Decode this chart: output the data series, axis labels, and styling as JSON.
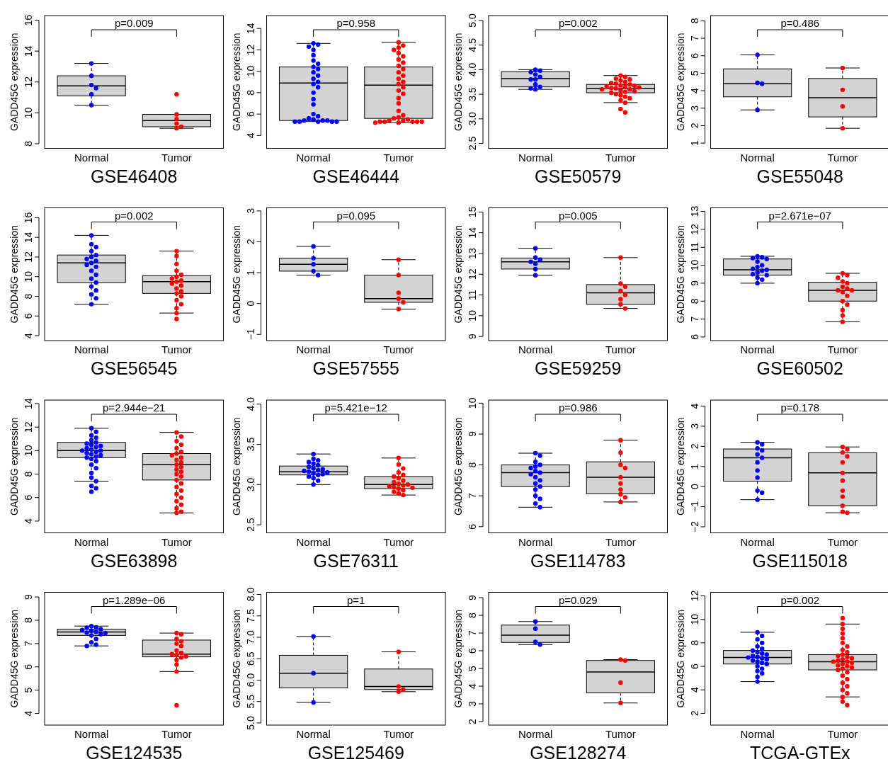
{
  "chart_data": [
    {
      "type": "box",
      "xlabel": "GSE46408",
      "ylabel": "GADD45G expression",
      "annotations": [
        "p=0.009"
      ],
      "categories": [
        "Normal",
        "Tumor"
      ],
      "ylim": [
        7.7,
        16.3
      ],
      "yticks": [
        8,
        10,
        12,
        14,
        16
      ],
      "marker": "circle",
      "boxes": [
        {
          "low": 10.5,
          "q1": 11.1,
          "median": 11.75,
          "q3": 12.4,
          "high": 13.2
        },
        {
          "low": 9.0,
          "q1": 9.1,
          "median": 9.5,
          "q3": 9.9,
          "high": 9.9
        }
      ],
      "series": [
        {
          "type": "scatter",
          "color": "#0000ff",
          "x": [
            "Normal",
            "Normal",
            "Normal",
            "Normal",
            "Normal",
            "Normal"
          ],
          "values": [
            13.2,
            12.4,
            11.8,
            11.6,
            11.2,
            10.5
          ]
        },
        {
          "type": "scatter",
          "color": "#ff0000",
          "x": [
            "Tumor",
            "Tumor",
            "Tumor",
            "Tumor",
            "Tumor",
            "Tumor"
          ],
          "values": [
            11.2,
            9.9,
            9.6,
            9.3,
            9.1,
            9.0
          ]
        }
      ]
    },
    {
      "type": "box",
      "xlabel": "GSE46444",
      "ylabel": "GADD45G expression",
      "annotations": [
        "p=0.958"
      ],
      "categories": [
        "Normal",
        "Tumor"
      ],
      "ylim": [
        2.8,
        15.2
      ],
      "yticks": [
        4,
        6,
        8,
        10,
        12,
        14
      ],
      "marker": "circle",
      "boxes": [
        {
          "low": 5.3,
          "q1": 5.4,
          "median": 8.9,
          "q3": 10.4,
          "high": 12.6
        },
        {
          "low": 5.2,
          "q1": 5.6,
          "median": 8.7,
          "q3": 10.4,
          "high": 12.7
        }
      ],
      "series": [
        {
          "type": "scatter",
          "color": "#0000ff",
          "x": [
            "Normal",
            "Normal",
            "Normal",
            "Normal",
            "Normal",
            "Normal",
            "Normal",
            "Normal",
            "Normal",
            "Normal",
            "Normal",
            "Normal",
            "Normal",
            "Normal",
            "Normal",
            "Normal",
            "Normal",
            "Normal",
            "Normal",
            "Normal",
            "Normal",
            "Normal",
            "Normal",
            "Normal",
            "Normal",
            "Normal",
            "Normal",
            "Normal",
            "Normal",
            "Normal"
          ],
          "values": [
            12.6,
            12.5,
            12.3,
            12.0,
            11.5,
            11.0,
            10.7,
            10.4,
            10.2,
            9.9,
            9.6,
            9.3,
            9.0,
            8.8,
            8.5,
            8.0,
            7.4,
            6.9,
            6.0,
            5.8,
            5.6,
            5.5,
            5.4,
            5.4,
            5.4,
            5.3,
            5.3,
            5.3,
            5.3,
            5.3
          ]
        },
        {
          "type": "scatter",
          "color": "#ff0000",
          "x": [
            "Tumor",
            "Tumor",
            "Tumor",
            "Tumor",
            "Tumor",
            "Tumor",
            "Tumor",
            "Tumor",
            "Tumor",
            "Tumor",
            "Tumor",
            "Tumor",
            "Tumor",
            "Tumor",
            "Tumor",
            "Tumor",
            "Tumor",
            "Tumor",
            "Tumor",
            "Tumor",
            "Tumor",
            "Tumor",
            "Tumor",
            "Tumor",
            "Tumor",
            "Tumor",
            "Tumor",
            "Tumor",
            "Tumor",
            "Tumor",
            "Tumor",
            "Tumor",
            "Tumor",
            "Tumor"
          ],
          "values": [
            12.7,
            12.4,
            12.2,
            12.0,
            11.7,
            11.4,
            11.1,
            10.8,
            10.5,
            10.2,
            9.9,
            9.6,
            9.3,
            9.0,
            8.8,
            8.5,
            8.2,
            7.9,
            7.5,
            7.0,
            6.3,
            5.9,
            5.7,
            5.6,
            5.5,
            5.4,
            5.4,
            5.3,
            5.3,
            5.3,
            5.3,
            5.3,
            5.2,
            5.2
          ]
        }
      ]
    },
    {
      "type": "box",
      "xlabel": "GSE50579",
      "ylabel": "GADD45G expression",
      "annotations": [
        "p=0.002"
      ],
      "categories": [
        "Normal",
        "Tumor"
      ],
      "ylim": [
        2.4,
        5.1
      ],
      "yticks": [
        {
          "value": 2.5,
          "label": "2.5"
        },
        {
          "value": 3,
          "label": "3.0"
        },
        {
          "value": 3.5,
          "label": "3.5"
        },
        {
          "value": 4,
          "label": "4.0"
        },
        {
          "value": 4.5,
          "label": "4.5"
        },
        {
          "value": 5,
          "label": "5.0"
        }
      ],
      "marker": "circle",
      "boxes": [
        {
          "low": 3.6,
          "q1": 3.65,
          "median": 3.82,
          "q3": 3.96,
          "high": 4.0
        },
        {
          "low": 3.33,
          "q1": 3.53,
          "median": 3.62,
          "q3": 3.7,
          "high": 3.88
        }
      ],
      "series": [
        {
          "type": "scatter",
          "color": "#0000ff",
          "x": [
            "Normal",
            "Normal",
            "Normal",
            "Normal",
            "Normal",
            "Normal",
            "Normal",
            "Normal",
            "Normal",
            "Normal",
            "Normal"
          ],
          "values": [
            4.0,
            3.98,
            3.95,
            3.9,
            3.85,
            3.8,
            3.8,
            3.7,
            3.65,
            3.62,
            3.6
          ]
        },
        {
          "type": "scatter",
          "color": "#ff0000",
          "x": [
            "Tumor",
            "Tumor",
            "Tumor",
            "Tumor",
            "Tumor",
            "Tumor",
            "Tumor",
            "Tumor",
            "Tumor",
            "Tumor",
            "Tumor",
            "Tumor",
            "Tumor",
            "Tumor",
            "Tumor",
            "Tumor",
            "Tumor",
            "Tumor",
            "Tumor",
            "Tumor",
            "Tumor",
            "Tumor",
            "Tumor",
            "Tumor",
            "Tumor",
            "Tumor",
            "Tumor",
            "Tumor",
            "Tumor",
            "Tumor"
          ],
          "values": [
            3.88,
            3.85,
            3.82,
            3.8,
            3.78,
            3.75,
            3.73,
            3.72,
            3.7,
            3.68,
            3.67,
            3.66,
            3.65,
            3.64,
            3.63,
            3.62,
            3.6,
            3.6,
            3.58,
            3.56,
            3.55,
            3.53,
            3.5,
            3.48,
            3.45,
            3.42,
            3.38,
            3.33,
            3.2,
            3.13
          ]
        }
      ]
    },
    {
      "type": "box",
      "xlabel": "GSE55048",
      "ylabel": "GADD45G expression",
      "annotations": [
        "p=0.486"
      ],
      "categories": [
        "Normal",
        "Tumor"
      ],
      "ylim": [
        0.7,
        8.3
      ],
      "yticks": [
        1,
        2,
        3,
        4,
        5,
        6,
        7,
        8
      ],
      "marker": "circle",
      "boxes": [
        {
          "low": 2.9,
          "q1": 3.65,
          "median": 4.4,
          "q3": 5.25,
          "high": 6.05
        },
        {
          "low": 1.85,
          "q1": 2.5,
          "median": 3.6,
          "q3": 4.7,
          "high": 5.3
        }
      ],
      "series": [
        {
          "type": "scatter",
          "color": "#0000ff",
          "x": [
            "Normal",
            "Normal",
            "Normal",
            "Normal"
          ],
          "values": [
            6.05,
            4.45,
            4.4,
            2.9
          ]
        },
        {
          "type": "scatter",
          "color": "#ff0000",
          "x": [
            "Tumor",
            "Tumor",
            "Tumor",
            "Tumor"
          ],
          "values": [
            5.3,
            4.05,
            3.1,
            1.85
          ]
        }
      ]
    },
    {
      "type": "box",
      "xlabel": "GSE56545",
      "ylabel": "GADD45G expression",
      "annotations": [
        "p=0.002"
      ],
      "categories": [
        "Normal",
        "Tumor"
      ],
      "ylim": [
        3.5,
        17
      ],
      "yticks": [
        4,
        6,
        8,
        10,
        12,
        14,
        16
      ],
      "marker": "circle",
      "boxes": [
        {
          "low": 7.2,
          "q1": 9.4,
          "median": 11.4,
          "q3": 12.2,
          "high": 14.2
        },
        {
          "low": 6.3,
          "q1": 8.3,
          "median": 9.5,
          "q3": 10.1,
          "high": 12.6
        }
      ],
      "series": [
        {
          "type": "scatter",
          "color": "#0000ff",
          "x": [
            "Normal",
            "Normal",
            "Normal",
            "Normal",
            "Normal",
            "Normal",
            "Normal",
            "Normal",
            "Normal",
            "Normal",
            "Normal",
            "Normal",
            "Normal",
            "Normal",
            "Normal",
            "Normal",
            "Normal",
            "Normal",
            "Normal",
            "Normal"
          ],
          "values": [
            14.2,
            13.3,
            13.0,
            12.6,
            12.2,
            12.0,
            11.8,
            11.6,
            11.4,
            11.2,
            11.0,
            10.6,
            10.2,
            9.8,
            9.4,
            9.0,
            8.6,
            8.2,
            7.8,
            7.2
          ]
        },
        {
          "type": "scatter",
          "color": "#ff0000",
          "x": [
            "Tumor",
            "Tumor",
            "Tumor",
            "Tumor",
            "Tumor",
            "Tumor",
            "Tumor",
            "Tumor",
            "Tumor",
            "Tumor",
            "Tumor",
            "Tumor",
            "Tumor",
            "Tumor",
            "Tumor",
            "Tumor",
            "Tumor",
            "Tumor",
            "Tumor",
            "Tumor"
          ],
          "values": [
            12.6,
            12.1,
            11.3,
            10.6,
            10.2,
            10.0,
            9.8,
            9.6,
            9.5,
            9.3,
            9.1,
            8.8,
            8.5,
            8.3,
            8.0,
            7.6,
            7.2,
            6.8,
            6.3,
            5.7
          ]
        }
      ]
    },
    {
      "type": "box",
      "xlabel": "GSE57555",
      "ylabel": "GADD45G expression",
      "annotations": [
        "p=0.095"
      ],
      "categories": [
        "Normal",
        "Tumor"
      ],
      "ylim": [
        -1.2,
        3.1
      ],
      "yticks": [
        {
          "value": -1,
          "label": "−1"
        },
        0,
        1,
        2,
        3
      ],
      "marker": "circle",
      "boxes": [
        {
          "low": 0.92,
          "q1": 1.05,
          "median": 1.27,
          "q3": 1.47,
          "high": 1.85
        },
        {
          "low": -0.18,
          "q1": 0.04,
          "median": 0.16,
          "q3": 0.92,
          "high": 1.42
        }
      ],
      "series": [
        {
          "type": "scatter",
          "color": "#0000ff",
          "x": [
            "Normal",
            "Normal",
            "Normal",
            "Normal",
            "Normal"
          ],
          "values": [
            1.85,
            1.47,
            1.27,
            1.05,
            0.92
          ]
        },
        {
          "type": "scatter",
          "color": "#ff0000",
          "x": [
            "Tumor",
            "Tumor",
            "Tumor",
            "Tumor",
            "Tumor",
            "Tumor"
          ],
          "values": [
            1.42,
            0.92,
            0.35,
            0.16,
            0.04,
            -0.18
          ]
        }
      ]
    },
    {
      "type": "box",
      "xlabel": "GSE59259",
      "ylabel": "GADD45G expression",
      "annotations": [
        "p=0.005"
      ],
      "categories": [
        "Normal",
        "Tumor"
      ],
      "ylim": [
        8.8,
        15.2
      ],
      "yticks": [
        9,
        10,
        11,
        12,
        13,
        14,
        15
      ],
      "marker": "circle",
      "boxes": [
        {
          "low": 11.95,
          "q1": 12.25,
          "median": 12.6,
          "q3": 12.78,
          "high": 13.25
        },
        {
          "low": 10.35,
          "q1": 10.55,
          "median": 11.1,
          "q3": 11.5,
          "high": 12.8
        }
      ],
      "series": [
        {
          "type": "scatter",
          "color": "#0000ff",
          "x": [
            "Normal",
            "Normal",
            "Normal",
            "Normal",
            "Normal",
            "Normal",
            "Normal"
          ],
          "values": [
            13.25,
            12.8,
            12.7,
            12.6,
            12.5,
            12.25,
            11.95
          ]
        },
        {
          "type": "scatter",
          "color": "#ff0000",
          "x": [
            "Tumor",
            "Tumor",
            "Tumor",
            "Tumor",
            "Tumor",
            "Tumor",
            "Tumor",
            "Tumor"
          ],
          "values": [
            12.8,
            11.55,
            11.4,
            11.2,
            11.0,
            10.8,
            10.55,
            10.35
          ]
        }
      ]
    },
    {
      "type": "box",
      "xlabel": "GSE60502",
      "ylabel": "GADD45G expression",
      "annotations": [
        "p=2.671e−07"
      ],
      "categories": [
        "Normal",
        "Tumor"
      ],
      "ylim": [
        5.8,
        13.2
      ],
      "yticks": [
        6,
        7,
        8,
        9,
        10,
        11,
        12,
        13
      ],
      "marker": "circle",
      "boxes": [
        {
          "low": 9.0,
          "q1": 9.45,
          "median": 9.75,
          "q3": 10.35,
          "high": 10.5
        },
        {
          "low": 6.85,
          "q1": 8.0,
          "median": 8.6,
          "q3": 9.05,
          "high": 9.55
        }
      ],
      "series": [
        {
          "type": "scatter",
          "color": "#0000ff",
          "x": [
            "Normal",
            "Normal",
            "Normal",
            "Normal",
            "Normal",
            "Normal",
            "Normal",
            "Normal",
            "Normal",
            "Normal",
            "Normal",
            "Normal",
            "Normal",
            "Normal",
            "Normal",
            "Normal"
          ],
          "values": [
            10.5,
            10.45,
            10.4,
            10.35,
            10.2,
            10.0,
            9.9,
            9.8,
            9.75,
            9.7,
            9.6,
            9.5,
            9.45,
            9.3,
            9.2,
            9.0
          ]
        },
        {
          "type": "scatter",
          "color": "#ff0000",
          "x": [
            "Tumor",
            "Tumor",
            "Tumor",
            "Tumor",
            "Tumor",
            "Tumor",
            "Tumor",
            "Tumor",
            "Tumor",
            "Tumor",
            "Tumor",
            "Tumor",
            "Tumor",
            "Tumor",
            "Tumor",
            "Tumor"
          ],
          "values": [
            9.55,
            9.45,
            9.3,
            9.1,
            9.0,
            8.8,
            8.7,
            8.6,
            8.6,
            8.5,
            8.3,
            8.0,
            7.8,
            7.5,
            7.2,
            6.85
          ]
        }
      ]
    },
    {
      "type": "box",
      "xlabel": "GSE63898",
      "ylabel": "GADD45G expression",
      "annotations": [
        "p=2.944e−21"
      ],
      "categories": [
        "Normal",
        "Tumor"
      ],
      "ylim": [
        3,
        14.3
      ],
      "yticks": [
        4,
        6,
        8,
        10,
        12,
        14
      ],
      "marker": "circle",
      "boxes": [
        {
          "low": 7.4,
          "q1": 9.4,
          "median": 10.0,
          "q3": 10.7,
          "high": 11.9
        },
        {
          "low": 4.7,
          "q1": 7.5,
          "median": 8.8,
          "q3": 9.75,
          "high": 11.55
        }
      ],
      "series": [
        {
          "type": "scatter",
          "color": "#0000ff",
          "x": [
            "Normal",
            "Normal",
            "Normal",
            "Normal",
            "Normal",
            "Normal",
            "Normal",
            "Normal",
            "Normal",
            "Normal",
            "Normal",
            "Normal",
            "Normal",
            "Normal",
            "Normal",
            "Normal",
            "Normal",
            "Normal",
            "Normal",
            "Normal",
            "Normal",
            "Normal",
            "Normal",
            "Normal",
            "Normal",
            "Normal",
            "Normal",
            "Normal",
            "Normal",
            "Normal"
          ],
          "values": [
            11.9,
            11.6,
            11.3,
            11.1,
            10.9,
            10.7,
            10.6,
            10.5,
            10.4,
            10.3,
            10.2,
            10.1,
            10.0,
            10.0,
            9.9,
            9.8,
            9.7,
            9.6,
            9.5,
            9.4,
            9.3,
            9.1,
            8.8,
            8.5,
            8.1,
            7.7,
            7.4,
            7.0,
            6.8,
            6.5
          ]
        },
        {
          "type": "scatter",
          "color": "#ff0000",
          "x": [
            "Tumor",
            "Tumor",
            "Tumor",
            "Tumor",
            "Tumor",
            "Tumor",
            "Tumor",
            "Tumor",
            "Tumor",
            "Tumor",
            "Tumor",
            "Tumor",
            "Tumor",
            "Tumor",
            "Tumor",
            "Tumor",
            "Tumor",
            "Tumor",
            "Tumor",
            "Tumor",
            "Tumor",
            "Tumor",
            "Tumor",
            "Tumor",
            "Tumor",
            "Tumor",
            "Tumor",
            "Tumor"
          ],
          "values": [
            11.55,
            11.2,
            10.8,
            10.5,
            10.2,
            9.9,
            9.75,
            9.6,
            9.4,
            9.2,
            9.0,
            8.8,
            8.6,
            8.4,
            8.2,
            8.0,
            7.8,
            7.5,
            7.2,
            6.9,
            6.6,
            6.3,
            6.0,
            5.7,
            5.4,
            5.1,
            4.8,
            4.7
          ]
        }
      ]
    },
    {
      "type": "box",
      "xlabel": "GSE76311",
      "ylabel": "GADD45G expression",
      "annotations": [
        "p=5.421e−12"
      ],
      "categories": [
        "Normal",
        "Tumor"
      ],
      "ylim": [
        2.4,
        4.05
      ],
      "yticks": [
        {
          "value": 2.5,
          "label": "2.5"
        },
        {
          "value": 3,
          "label": "3.0"
        },
        {
          "value": 3.5,
          "label": "3.5"
        },
        {
          "value": 4,
          "label": "4.0"
        }
      ],
      "marker": "circle",
      "boxes": [
        {
          "low": 3.0,
          "q1": 3.12,
          "median": 3.16,
          "q3": 3.23,
          "high": 3.38
        },
        {
          "low": 2.87,
          "q1": 2.95,
          "median": 3.0,
          "q3": 3.1,
          "high": 3.33
        }
      ],
      "series": [
        {
          "type": "scatter",
          "color": "#0000ff",
          "x": [
            "Normal",
            "Normal",
            "Normal",
            "Normal",
            "Normal",
            "Normal",
            "Normal",
            "Normal",
            "Normal",
            "Normal",
            "Normal",
            "Normal",
            "Normal",
            "Normal",
            "Normal",
            "Normal",
            "Normal",
            "Normal",
            "Normal",
            "Normal"
          ],
          "values": [
            3.38,
            3.32,
            3.3,
            3.28,
            3.26,
            3.24,
            3.22,
            3.2,
            3.19,
            3.18,
            3.17,
            3.16,
            3.15,
            3.14,
            3.13,
            3.12,
            3.1,
            3.08,
            3.05,
            3.0
          ]
        },
        {
          "type": "scatter",
          "color": "#ff0000",
          "x": [
            "Tumor",
            "Tumor",
            "Tumor",
            "Tumor",
            "Tumor",
            "Tumor",
            "Tumor",
            "Tumor",
            "Tumor",
            "Tumor",
            "Tumor",
            "Tumor",
            "Tumor",
            "Tumor",
            "Tumor",
            "Tumor",
            "Tumor",
            "Tumor",
            "Tumor",
            "Tumor"
          ],
          "values": [
            3.33,
            3.25,
            3.2,
            3.15,
            3.12,
            3.1,
            3.08,
            3.05,
            3.03,
            3.01,
            3.0,
            2.99,
            2.98,
            2.97,
            2.96,
            2.95,
            2.93,
            2.91,
            2.89,
            2.87
          ]
        }
      ]
    },
    {
      "type": "box",
      "xlabel": "GSE114783",
      "ylabel": "GADD45G expression",
      "annotations": [
        "p=0.986"
      ],
      "categories": [
        "Normal",
        "Tumor"
      ],
      "ylim": [
        5.8,
        10.1
      ],
      "yticks": [
        6,
        7,
        8,
        9,
        10
      ],
      "marker": "circle",
      "boxes": [
        {
          "low": 6.63,
          "q1": 7.3,
          "median": 7.75,
          "q3": 8.0,
          "high": 8.38
        },
        {
          "low": 6.8,
          "q1": 7.07,
          "median": 7.6,
          "q3": 8.1,
          "high": 8.8
        }
      ],
      "series": [
        {
          "type": "scatter",
          "color": "#0000ff",
          "x": [
            "Normal",
            "Normal",
            "Normal",
            "Normal",
            "Normal",
            "Normal",
            "Normal",
            "Normal",
            "Normal",
            "Normal",
            "Normal",
            "Normal",
            "Normal",
            "Normal",
            "Normal",
            "Normal",
            "Normal",
            "Normal"
          ],
          "values": [
            8.38,
            8.3,
            8.1,
            8.0,
            7.95,
            7.9,
            7.8,
            7.75,
            7.7,
            7.6,
            7.5,
            7.4,
            7.3,
            7.2,
            7.0,
            6.9,
            6.75,
            6.63
          ]
        },
        {
          "type": "scatter",
          "color": "#ff0000",
          "x": [
            "Tumor",
            "Tumor",
            "Tumor",
            "Tumor",
            "Tumor",
            "Tumor",
            "Tumor",
            "Tumor",
            "Tumor",
            "Tumor"
          ],
          "values": [
            8.8,
            8.4,
            8.0,
            7.9,
            7.6,
            7.4,
            7.2,
            7.05,
            6.95,
            6.8
          ]
        }
      ]
    },
    {
      "type": "box",
      "xlabel": "GSE115018",
      "ylabel": "GADD45G expression",
      "annotations": [
        "p=0.178"
      ],
      "categories": [
        "Normal",
        "Tumor"
      ],
      "ylim": [
        -2.3,
        4.3
      ],
      "yticks": [
        {
          "value": -2,
          "label": "−2"
        },
        {
          "value": -1,
          "label": "−1"
        },
        0,
        1,
        2,
        3,
        4
      ],
      "marker": "circle",
      "boxes": [
        {
          "low": -0.65,
          "q1": 0.27,
          "median": 1.43,
          "q3": 1.87,
          "high": 2.2
        },
        {
          "low": -1.3,
          "q1": -0.95,
          "median": 0.68,
          "q3": 1.68,
          "high": 1.97
        }
      ],
      "series": [
        {
          "type": "scatter",
          "color": "#0000ff",
          "x": [
            "Normal",
            "Normal",
            "Normal",
            "Normal",
            "Normal",
            "Normal",
            "Normal",
            "Normal",
            "Normal",
            "Normal",
            "Normal",
            "Normal"
          ],
          "values": [
            2.2,
            2.1,
            1.9,
            1.8,
            1.6,
            1.43,
            1.2,
            0.8,
            0.45,
            -0.2,
            -0.3,
            -0.65
          ]
        },
        {
          "type": "scatter",
          "color": "#ff0000",
          "x": [
            "Tumor",
            "Tumor",
            "Tumor",
            "Tumor",
            "Tumor",
            "Tumor",
            "Tumor",
            "Tumor",
            "Tumor",
            "Tumor",
            "Tumor",
            "Tumor"
          ],
          "values": [
            1.97,
            1.85,
            1.7,
            1.5,
            1.2,
            0.68,
            0.3,
            -0.2,
            -0.5,
            -0.95,
            -1.25,
            -1.3
          ]
        }
      ]
    },
    {
      "type": "box",
      "xlabel": "GSE124535",
      "ylabel": "GADD45G expression",
      "annotations": [
        "p=1.289e−06"
      ],
      "categories": [
        "Normal",
        "Tumor"
      ],
      "ylim": [
        3.5,
        9.2
      ],
      "yticks": [
        4,
        5,
        6,
        7,
        8,
        9
      ],
      "marker": "circle",
      "boxes": [
        {
          "low": 6.9,
          "q1": 7.35,
          "median": 7.5,
          "q3": 7.62,
          "high": 7.75
        },
        {
          "low": 5.8,
          "q1": 6.43,
          "median": 6.55,
          "q3": 7.15,
          "high": 7.45
        }
      ],
      "series": [
        {
          "type": "scatter",
          "color": "#0000ff",
          "x": [
            "Normal",
            "Normal",
            "Normal",
            "Normal",
            "Normal",
            "Normal",
            "Normal",
            "Normal",
            "Normal",
            "Normal",
            "Normal",
            "Normal",
            "Normal",
            "Normal",
            "Normal"
          ],
          "values": [
            7.75,
            7.7,
            7.68,
            7.62,
            7.58,
            7.55,
            7.5,
            7.47,
            7.45,
            7.4,
            7.35,
            7.2,
            7.05,
            6.95,
            6.9
          ]
        },
        {
          "type": "scatter",
          "color": "#ff0000",
          "x": [
            "Tumor",
            "Tumor",
            "Tumor",
            "Tumor",
            "Tumor",
            "Tumor",
            "Tumor",
            "Tumor",
            "Tumor",
            "Tumor",
            "Tumor",
            "Tumor",
            "Tumor",
            "Tumor",
            "Tumor",
            "Tumor"
          ],
          "values": [
            7.45,
            7.4,
            7.2,
            7.1,
            7.0,
            6.9,
            6.7,
            6.6,
            6.55,
            6.5,
            6.45,
            6.4,
            6.3,
            6.1,
            5.8,
            4.35
          ]
        }
      ]
    },
    {
      "type": "box",
      "xlabel": "GSE125469",
      "ylabel": "GADD45G expression",
      "annotations": [
        "p=1"
      ],
      "categories": [
        "Normal",
        "Tumor"
      ],
      "ylim": [
        4.95,
        8.05
      ],
      "yticks": [
        {
          "value": 5,
          "label": "5.0"
        },
        5.5,
        {
          "value": 6,
          "label": "6.0"
        },
        6.5,
        {
          "value": 7,
          "label": "7.0"
        },
        7.5,
        {
          "value": 8,
          "label": "8.0"
        }
      ],
      "marker": "circle",
      "boxes": [
        {
          "low": 5.48,
          "q1": 5.82,
          "median": 6.16,
          "q3": 6.58,
          "high": 7.02
        },
        {
          "low": 5.73,
          "q1": 5.78,
          "median": 5.85,
          "q3": 6.26,
          "high": 6.66
        }
      ],
      "series": [
        {
          "type": "scatter",
          "color": "#0000ff",
          "x": [
            "Normal",
            "Normal",
            "Normal"
          ],
          "values": [
            7.02,
            6.16,
            5.48
          ]
        },
        {
          "type": "scatter",
          "color": "#ff0000",
          "x": [
            "Tumor",
            "Tumor",
            "Tumor",
            "Tumor"
          ],
          "values": [
            6.66,
            5.85,
            5.78,
            5.73
          ]
        }
      ]
    },
    {
      "type": "box",
      "xlabel": "GSE128274",
      "ylabel": "GADD45G expression",
      "annotations": [
        "p=0.029"
      ],
      "categories": [
        "Normal",
        "Tumor"
      ],
      "ylim": [
        1.8,
        9.3
      ],
      "yticks": [
        2,
        3,
        4,
        5,
        6,
        7,
        8,
        9
      ],
      "marker": "circle",
      "boxes": [
        {
          "low": 6.35,
          "q1": 6.47,
          "median": 6.88,
          "q3": 7.45,
          "high": 7.65
        },
        {
          "low": 3.05,
          "q1": 3.62,
          "median": 4.8,
          "q3": 5.45,
          "high": 5.5
        }
      ],
      "series": [
        {
          "type": "scatter",
          "color": "#0000ff",
          "x": [
            "Normal",
            "Normal",
            "Normal",
            "Normal"
          ],
          "values": [
            7.65,
            7.25,
            6.5,
            6.35
          ]
        },
        {
          "type": "scatter",
          "color": "#ff0000",
          "x": [
            "Tumor",
            "Tumor",
            "Tumor",
            "Tumor"
          ],
          "values": [
            5.5,
            5.45,
            4.2,
            3.05
          ]
        }
      ]
    },
    {
      "type": "box",
      "xlabel": "TCGA-GTEx",
      "ylabel": "GADD45G expression",
      "annotations": [
        "p=0.002"
      ],
      "categories": [
        "Normal",
        "Tumor"
      ],
      "ylim": [
        1,
        12.3
      ],
      "yticks": [
        2,
        4,
        6,
        8,
        10,
        12
      ],
      "marker": "circle",
      "boxes": [
        {
          "low": 4.7,
          "q1": 6.2,
          "median": 6.75,
          "q3": 7.35,
          "high": 8.9
        },
        {
          "low": 3.4,
          "q1": 5.7,
          "median": 6.4,
          "q3": 7.0,
          "high": 9.6
        }
      ],
      "series": [
        {
          "type": "scatter",
          "color": "#0000ff",
          "x": [
            "Normal",
            "Normal",
            "Normal",
            "Normal",
            "Normal",
            "Normal",
            "Normal",
            "Normal",
            "Normal",
            "Normal",
            "Normal",
            "Normal",
            "Normal",
            "Normal",
            "Normal",
            "Normal",
            "Normal",
            "Normal",
            "Normal",
            "Normal",
            "Normal",
            "Normal",
            "Normal",
            "Normal",
            "Normal"
          ],
          "values": [
            8.9,
            8.6,
            8.3,
            8.0,
            7.7,
            7.5,
            7.35,
            7.2,
            7.1,
            7.0,
            6.9,
            6.8,
            6.75,
            6.7,
            6.6,
            6.5,
            6.4,
            6.3,
            6.2,
            6.0,
            5.8,
            5.6,
            5.4,
            5.1,
            4.7
          ]
        },
        {
          "type": "scatter",
          "color": "#ff0000",
          "x": [
            "Tumor",
            "Tumor",
            "Tumor",
            "Tumor",
            "Tumor",
            "Tumor",
            "Tumor",
            "Tumor",
            "Tumor",
            "Tumor",
            "Tumor",
            "Tumor",
            "Tumor",
            "Tumor",
            "Tumor",
            "Tumor",
            "Tumor",
            "Tumor",
            "Tumor",
            "Tumor",
            "Tumor",
            "Tumor",
            "Tumor",
            "Tumor",
            "Tumor",
            "Tumor",
            "Tumor",
            "Tumor",
            "Tumor",
            "Tumor",
            "Tumor",
            "Tumor",
            "Tumor",
            "Tumor"
          ],
          "values": [
            10.1,
            9.6,
            9.2,
            8.8,
            8.4,
            8.0,
            7.7,
            7.4,
            7.2,
            7.0,
            6.9,
            6.8,
            6.7,
            6.6,
            6.5,
            6.4,
            6.4,
            6.3,
            6.2,
            6.1,
            6.0,
            5.9,
            5.8,
            5.7,
            5.5,
            5.2,
            4.9,
            4.6,
            4.3,
            4.0,
            3.7,
            3.4,
            3.0,
            2.7
          ]
        }
      ]
    }
  ]
}
